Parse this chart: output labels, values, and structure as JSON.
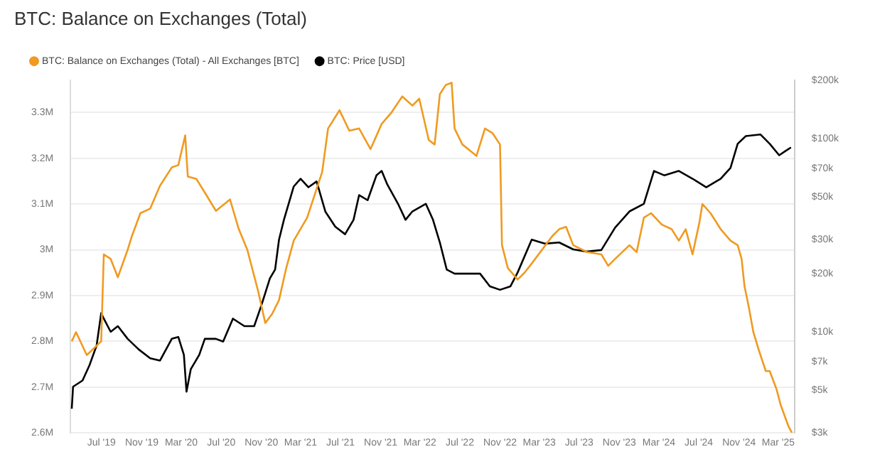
{
  "chart_data": {
    "type": "line",
    "title": "BTC: Balance on Exchanges (Total)",
    "legend": "top left",
    "grid": "y",
    "log": "y2",
    "xlim": [
      "2019-03-28",
      "2025-04-20"
    ],
    "xticks": [
      {
        "value": "2019-07-01",
        "label": "Jul '19"
      },
      {
        "value": "2019-11-01",
        "label": "Nov '19"
      },
      {
        "value": "2020-03-01",
        "label": "Mar '20"
      },
      {
        "value": "2020-07-01",
        "label": "Jul '20"
      },
      {
        "value": "2020-11-01",
        "label": "Nov '20"
      },
      {
        "value": "2021-03-01",
        "label": "Mar '21"
      },
      {
        "value": "2021-07-01",
        "label": "Jul '21"
      },
      {
        "value": "2021-11-01",
        "label": "Nov '21"
      },
      {
        "value": "2022-03-01",
        "label": "Mar '22"
      },
      {
        "value": "2022-07-01",
        "label": "Jul '22"
      },
      {
        "value": "2022-11-01",
        "label": "Nov '22"
      },
      {
        "value": "2023-03-01",
        "label": "Mar '23"
      },
      {
        "value": "2023-07-01",
        "label": "Jul '23"
      },
      {
        "value": "2023-11-01",
        "label": "Nov '23"
      },
      {
        "value": "2024-03-01",
        "label": "Mar '24"
      },
      {
        "value": "2024-07-01",
        "label": "Jul '24"
      },
      {
        "value": "2024-11-01",
        "label": "Nov '24"
      },
      {
        "value": "2025-03-01",
        "label": "Mar '25"
      }
    ],
    "ylim": [
      2600000,
      3370000
    ],
    "yticks": [
      {
        "value": 2600000,
        "label": "2.6M"
      },
      {
        "value": 2700000,
        "label": "2.7M"
      },
      {
        "value": 2800000,
        "label": "2.8M"
      },
      {
        "value": 2900000,
        "label": "2.9M"
      },
      {
        "value": 3000000,
        "label": "3M"
      },
      {
        "value": 3100000,
        "label": "3.1M"
      },
      {
        "value": 3200000,
        "label": "3.2M"
      },
      {
        "value": 3300000,
        "label": "3.3M"
      }
    ],
    "y2lim": [
      3000,
      200000
    ],
    "y2ticks": [
      {
        "value": 3000,
        "label": "$3k"
      },
      {
        "value": 5000,
        "label": "$5k"
      },
      {
        "value": 7000,
        "label": "$7k"
      },
      {
        "value": 10000,
        "label": "$10k"
      },
      {
        "value": 20000,
        "label": "$20k"
      },
      {
        "value": 30000,
        "label": "$30k"
      },
      {
        "value": 50000,
        "label": "$50k"
      },
      {
        "value": 70000,
        "label": "$70k"
      },
      {
        "value": 100000,
        "label": "$100k"
      },
      {
        "value": 200000,
        "label": "$200k"
      }
    ],
    "series": [
      {
        "name": "BTC: Balance on Exchanges (Total) - All Exchanges [BTC]",
        "color": "#f09a20",
        "x": [
          "2019-04-01",
          "2019-04-14",
          "2019-05-17",
          "2019-06-30",
          "2019-07-08",
          "2019-07-29",
          "2019-08-20",
          "2019-09-19",
          "2019-10-02",
          "2019-10-28",
          "2019-11-27",
          "2019-12-27",
          "2020-02-01",
          "2020-02-21",
          "2020-03-13",
          "2020-03-21",
          "2020-04-16",
          "2020-05-12",
          "2020-06-15",
          "2020-07-28",
          "2020-08-24",
          "2020-09-19",
          "2020-10-22",
          "2020-11-13",
          "2020-12-04",
          "2020-12-25",
          "2021-01-16",
          "2021-02-08",
          "2021-03-21",
          "2021-05-06",
          "2021-05-24",
          "2021-06-15",
          "2021-06-28",
          "2021-07-28",
          "2021-08-27",
          "2021-10-01",
          "2021-11-04",
          "2021-12-04",
          "2022-01-06",
          "2022-02-06",
          "2022-02-27",
          "2022-03-28",
          "2022-04-15",
          "2022-05-01",
          "2022-05-19",
          "2022-06-06",
          "2022-06-15",
          "2022-07-09",
          "2022-08-04",
          "2022-08-21",
          "2022-09-16",
          "2022-10-09",
          "2022-11-01",
          "2022-11-07",
          "2022-11-25",
          "2022-12-25",
          "2023-01-15",
          "2023-02-06",
          "2023-04-10",
          "2023-05-01",
          "2023-05-22",
          "2023-06-13",
          "2023-07-25",
          "2023-09-07",
          "2023-09-28",
          "2023-10-19",
          "2023-12-02",
          "2023-12-24",
          "2024-01-15",
          "2024-02-06",
          "2024-03-10",
          "2024-04-09",
          "2024-05-01",
          "2024-05-22",
          "2024-06-12",
          "2024-07-03",
          "2024-07-12",
          "2024-08-06",
          "2024-09-06",
          "2024-10-06",
          "2024-10-28",
          "2024-11-09",
          "2024-11-18",
          "2024-12-01",
          "2024-12-15",
          "2025-01-01",
          "2025-01-22",
          "2025-02-03",
          "2025-02-24",
          "2025-03-09",
          "2025-04-01",
          "2025-04-12"
        ],
        "values": [
          2800000,
          2820000,
          2770000,
          2800000,
          2990000,
          2980000,
          2940000,
          3000000,
          3030000,
          3080000,
          3090000,
          3140000,
          3180000,
          3185000,
          3250000,
          3160000,
          3155000,
          3125000,
          3085000,
          3110000,
          3045000,
          3000000,
          2910000,
          2840000,
          2860000,
          2890000,
          2960000,
          3020000,
          3070000,
          3170000,
          3265000,
          3290000,
          3305000,
          3260000,
          3265000,
          3220000,
          3275000,
          3300000,
          3335000,
          3315000,
          3330000,
          3240000,
          3230000,
          3340000,
          3360000,
          3365000,
          3265000,
          3230000,
          3215000,
          3205000,
          3265000,
          3255000,
          3230000,
          3010000,
          2960000,
          2935000,
          2950000,
          2970000,
          3030000,
          3045000,
          3050000,
          3010000,
          2995000,
          2990000,
          2965000,
          2980000,
          3010000,
          2995000,
          3070000,
          3080000,
          3055000,
          3045000,
          3020000,
          3045000,
          2990000,
          3060000,
          3100000,
          3080000,
          3045000,
          3020000,
          3010000,
          2980000,
          2920000,
          2875000,
          2820000,
          2780000,
          2735000,
          2735000,
          2695000,
          2660000,
          2615000,
          2600000
        ]
      },
      {
        "name": "BTC: Price [USD]",
        "color": "#000000",
        "axis": "y2",
        "x": [
          "2019-04-01",
          "2019-04-05",
          "2019-05-04",
          "2019-05-25",
          "2019-06-16",
          "2019-06-30",
          "2019-07-08",
          "2019-07-29",
          "2019-08-20",
          "2019-09-19",
          "2019-10-23",
          "2019-11-27",
          "2019-12-27",
          "2020-02-01",
          "2020-02-21",
          "2020-03-09",
          "2020-03-17",
          "2020-03-30",
          "2020-04-25",
          "2020-05-12",
          "2020-06-15",
          "2020-07-07",
          "2020-08-06",
          "2020-09-10",
          "2020-10-10",
          "2020-11-01",
          "2020-11-27",
          "2020-12-13",
          "2020-12-25",
          "2021-01-09",
          "2021-02-08",
          "2021-03-01",
          "2021-03-25",
          "2021-04-19",
          "2021-05-16",
          "2021-06-15",
          "2021-07-15",
          "2021-08-10",
          "2021-08-27",
          "2021-09-22",
          "2021-10-19",
          "2021-11-04",
          "2021-11-21",
          "2021-12-24",
          "2022-01-16",
          "2022-02-06",
          "2022-03-19",
          "2022-04-10",
          "2022-05-01",
          "2022-05-22",
          "2022-06-15",
          "2022-07-27",
          "2022-09-01",
          "2022-10-01",
          "2022-11-01",
          "2022-12-03",
          "2022-12-25",
          "2023-02-06",
          "2023-03-19",
          "2023-05-01",
          "2023-06-13",
          "2023-07-25",
          "2023-09-07",
          "2023-10-19",
          "2023-12-02",
          "2024-01-15",
          "2024-02-15",
          "2024-03-18",
          "2024-05-01",
          "2024-06-12",
          "2024-07-24",
          "2024-09-06",
          "2024-10-06",
          "2024-10-28",
          "2024-11-22",
          "2025-01-06",
          "2025-02-03",
          "2025-03-04",
          "2025-03-22",
          "2025-04-09"
        ],
        "values": [
          4000,
          5200,
          5600,
          6700,
          8500,
          12500,
          11700,
          10000,
          10700,
          9200,
          8100,
          7300,
          7100,
          9200,
          9400,
          7600,
          4900,
          6400,
          7600,
          9200,
          9200,
          8900,
          11700,
          10700,
          10700,
          13700,
          18900,
          21000,
          30000,
          38000,
          56500,
          62000,
          56000,
          60000,
          41800,
          35000,
          32000,
          38000,
          51000,
          48000,
          64500,
          68000,
          58000,
          46000,
          38000,
          42000,
          46000,
          38000,
          29000,
          21000,
          20000,
          20000,
          20000,
          17200,
          16500,
          17200,
          20300,
          30000,
          28600,
          29000,
          26700,
          26000,
          26500,
          34600,
          42000,
          46000,
          68000,
          64500,
          68000,
          62000,
          56000,
          62000,
          70500,
          94000,
          103000,
          105000,
          94000,
          82000,
          86000,
          90000
        ]
      }
    ]
  }
}
